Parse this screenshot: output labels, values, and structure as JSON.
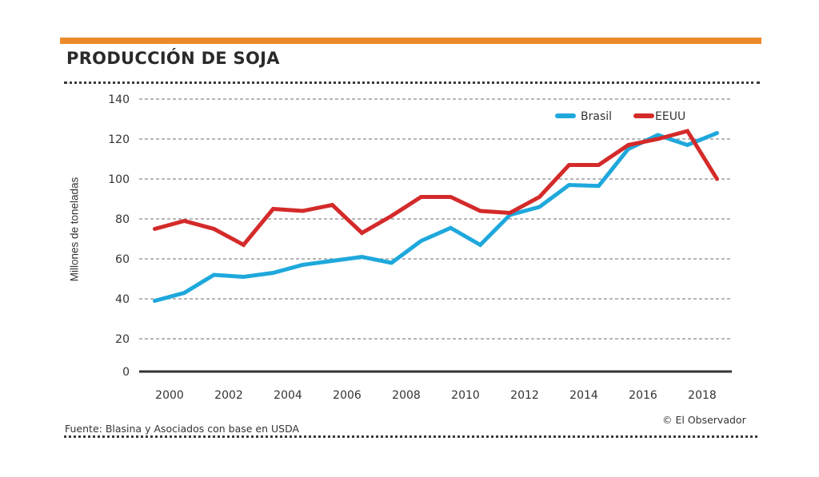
{
  "header": {
    "title": "PRODUCCIÓN DE SOJA",
    "accent_color": "#ec8a2b"
  },
  "footer": {
    "source": "Fuente: Blasina y Asociados con base en USDA",
    "credit": "© El Observador"
  },
  "chart_data": {
    "type": "line",
    "title": "PRODUCCIÓN DE SOJA",
    "xlabel": "",
    "ylabel": "Millones de toneladas",
    "ylim": [
      0,
      140
    ],
    "yticks": [
      0,
      20,
      40,
      60,
      80,
      100,
      120,
      140
    ],
    "xticks": [
      2000,
      2002,
      2004,
      2006,
      2008,
      2010,
      2012,
      2014,
      2016,
      2018
    ],
    "grid": true,
    "legend_position": "top-right",
    "x": [
      1999.5,
      2000.5,
      2001.5,
      2002.5,
      2003.5,
      2004.5,
      2005.5,
      2006.5,
      2007.5,
      2008.5,
      2009.5,
      2010.5,
      2011.5,
      2012.5,
      2013.5,
      2014.5,
      2015.5,
      2016.5,
      2017.5,
      2018.5
    ],
    "series": [
      {
        "name": "Brasil",
        "color": "#1ea8dc",
        "values": [
          39,
          43,
          52,
          51,
          53,
          57,
          59,
          61,
          58,
          69,
          75.5,
          67,
          82,
          86,
          97,
          96.5,
          115,
          122,
          117,
          123
        ]
      },
      {
        "name": "EEUU",
        "color": "#d42a2a",
        "values": [
          75,
          79,
          75,
          67,
          85,
          84,
          87,
          73,
          81.5,
          91,
          91,
          84,
          83,
          91,
          107,
          107,
          117,
          120,
          124,
          100
        ]
      }
    ]
  }
}
